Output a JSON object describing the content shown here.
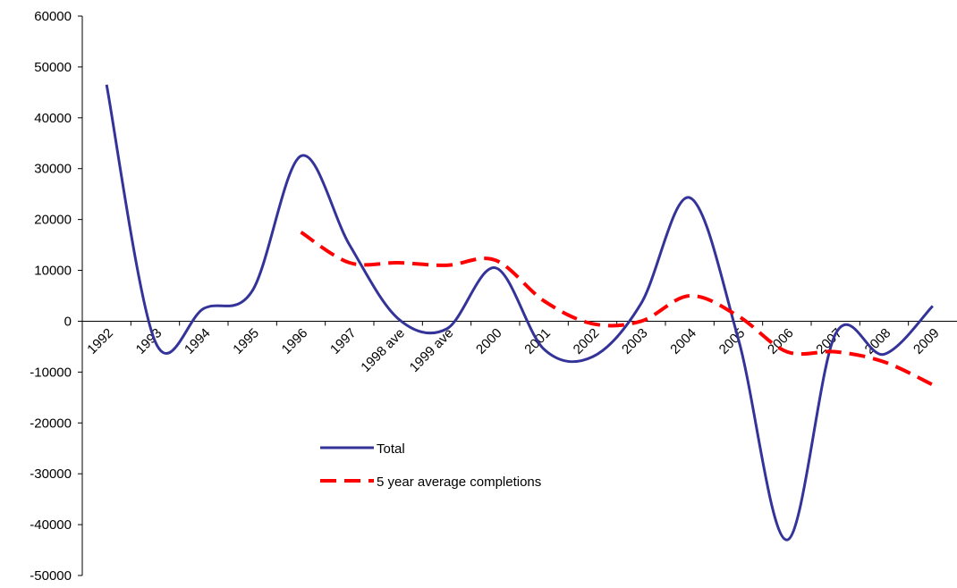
{
  "chart_data": {
    "type": "line",
    "categories": [
      "1992",
      "1993",
      "1994",
      "1995",
      "1996",
      "1997",
      "1998 ave",
      "1999 ave",
      "2000",
      "2001",
      "2002",
      "2003",
      "2004",
      "2005",
      "2006",
      "2007",
      "2008",
      "2009"
    ],
    "series": [
      {
        "name": "Total",
        "color": "#333399",
        "dash": false,
        "values": [
          46500,
          -4000,
          2500,
          6000,
          32500,
          15000,
          500,
          -1500,
          10500,
          -5500,
          -7000,
          3500,
          24300,
          -3500,
          -43000,
          -2500,
          -6500,
          3000
        ]
      },
      {
        "name": "5 year average completions",
        "color": "#ff0000",
        "dash": true,
        "values": [
          null,
          null,
          null,
          null,
          17500,
          11500,
          11500,
          11000,
          12000,
          4000,
          -500,
          0,
          5000,
          1000,
          -6000,
          -6000,
          -8000,
          -12500
        ]
      }
    ],
    "ylim": [
      -50000,
      60000
    ],
    "yticks": [
      -50000,
      -40000,
      -30000,
      -20000,
      -10000,
      0,
      10000,
      20000,
      30000,
      40000,
      50000,
      60000
    ]
  }
}
